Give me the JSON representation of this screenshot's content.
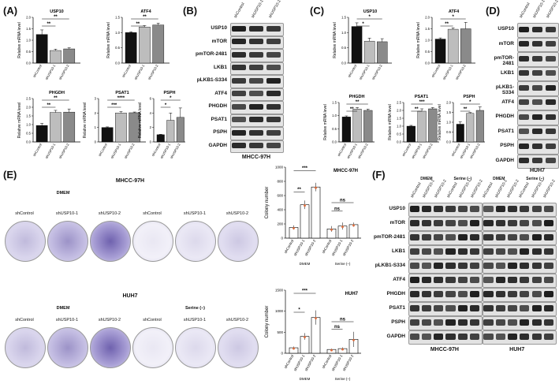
{
  "panel_letters": {
    "A": "(A)",
    "B": "(B)",
    "C": "(C)",
    "D": "(D)",
    "E": "(E)",
    "F": "(F)"
  },
  "qpcr_categories": [
    "shControl",
    "shUSP10-1",
    "shUSP10-2"
  ],
  "qpcr_ylabel": "Relative mRNA level",
  "chart_data": [
    {
      "type": "bar",
      "panel": "A",
      "title": "USP10",
      "categories": [
        "shControl",
        "shUSP10-1",
        "shUSP10-2"
      ],
      "values": [
        1.25,
        0.55,
        0.62
      ],
      "errors": [
        0.2,
        0.06,
        0.05
      ],
      "ylim": [
        0,
        2.0
      ],
      "yticks": [
        "0.0",
        "0.5",
        "1.0",
        "1.5",
        "2.0"
      ],
      "sig": [
        "**",
        "**"
      ]
    },
    {
      "type": "bar",
      "panel": "A",
      "title": "ATF4",
      "categories": [
        "shControl",
        "shUSP10-1",
        "shUSP10-2"
      ],
      "values": [
        1.0,
        1.18,
        1.25
      ],
      "errors": [
        0.03,
        0.05,
        0.06
      ],
      "ylim": [
        0,
        1.5
      ],
      "yticks": [
        "0.0",
        "0.5",
        "1.0",
        "1.5"
      ],
      "sig": [
        "**",
        "**"
      ]
    },
    {
      "type": "bar",
      "panel": "A",
      "title": "PHGDH",
      "categories": [
        "shControl",
        "shUSP10-1",
        "shUSP10-2"
      ],
      "values": [
        0.95,
        1.7,
        1.72
      ],
      "errors": [
        0.12,
        0.12,
        0.18
      ],
      "ylim": [
        0,
        2.5
      ],
      "yticks": [
        "0.0",
        "0.5",
        "1.0",
        "1.5",
        "2.0",
        "2.5"
      ],
      "sig": [
        "**",
        "**"
      ]
    },
    {
      "type": "bar",
      "panel": "A",
      "title": "PSAT1",
      "categories": [
        "shControl",
        "shUSP10-1",
        "shUSP10-2"
      ],
      "values": [
        1.0,
        2.0,
        2.02
      ],
      "errors": [
        0.04,
        0.1,
        0.05
      ],
      "ylim": [
        0,
        3
      ],
      "yticks": [
        "0",
        "1",
        "2",
        "3"
      ],
      "sig": [
        "***",
        "****"
      ]
    },
    {
      "type": "bar",
      "panel": "A",
      "title": "PSPH",
      "categories": [
        "shControl",
        "shUSP10-1",
        "shUSP10-2"
      ],
      "values": [
        1.0,
        3.0,
        3.4
      ],
      "errors": [
        0.05,
        1.0,
        1.3
      ],
      "ylim": [
        0,
        6
      ],
      "yticks": [
        "0",
        "2",
        "4",
        "6"
      ],
      "sig": [
        "*",
        "*"
      ]
    },
    {
      "type": "bar",
      "panel": "C",
      "title": "USP10",
      "categories": [
        "shControl",
        "shUSP10-1",
        "shUSP10-2"
      ],
      "values": [
        1.2,
        0.72,
        0.7
      ],
      "errors": [
        0.12,
        0.1,
        0.1
      ],
      "ylim": [
        0,
        1.5
      ],
      "yticks": [
        "0.0",
        "0.5",
        "1.0",
        "1.5"
      ],
      "sig": [
        "*",
        "*"
      ]
    },
    {
      "type": "bar",
      "panel": "C",
      "title": "ATF4",
      "categories": [
        "shControl",
        "shUSP10-1",
        "shUSP10-2"
      ],
      "values": [
        1.05,
        1.48,
        1.5
      ],
      "errors": [
        0.05,
        0.06,
        0.28
      ],
      "ylim": [
        0,
        2.0
      ],
      "yticks": [
        "0.0",
        "0.5",
        "1.0",
        "1.5",
        "2.0"
      ],
      "sig": [
        "**",
        "*"
      ]
    },
    {
      "type": "bar",
      "panel": "C",
      "title": "PHGDH",
      "categories": [
        "shControl",
        "shUSP10-1",
        "shUSP10-2"
      ],
      "values": [
        0.95,
        1.25,
        1.2
      ],
      "errors": [
        0.04,
        0.06,
        0.05
      ],
      "ylim": [
        0,
        1.5
      ],
      "yticks": [
        "0.0",
        "0.5",
        "1.0",
        "1.5"
      ],
      "sig": [
        "**",
        "**"
      ]
    },
    {
      "type": "bar",
      "panel": "C",
      "title": "PSAT1",
      "categories": [
        "shControl",
        "shUSP10-1",
        "shUSP10-2"
      ],
      "values": [
        1.0,
        1.95,
        2.1
      ],
      "errors": [
        0.05,
        0.15,
        0.08
      ],
      "ylim": [
        0,
        2.5
      ],
      "yticks": [
        "0.0",
        "0.5",
        "1.0",
        "1.5",
        "2.0",
        "2.5"
      ],
      "sig": [
        "**",
        "***"
      ]
    },
    {
      "type": "bar",
      "panel": "C",
      "title": "PSPH",
      "categories": [
        "shControl",
        "shUSP10-1",
        "shUSP10-2"
      ],
      "values": [
        0.9,
        1.45,
        1.6
      ],
      "errors": [
        0.12,
        0.04,
        0.18
      ],
      "ylim": [
        0,
        2.0
      ],
      "yticks": [
        "0.0",
        "0.5",
        "1.0",
        "1.5",
        "2.0"
      ],
      "sig": [
        "**",
        "*"
      ]
    },
    {
      "type": "bar",
      "panel": "E",
      "title": "MHCC-97H",
      "ylabel": "Colony number",
      "categories": [
        "shControl",
        "shUSP10-1",
        "shUSP10-2",
        "shControl",
        "shUSP10-1",
        "shUSP10-2"
      ],
      "groups": [
        "DMEM",
        "Serine (–)"
      ],
      "values": [
        150,
        470,
        720,
        130,
        170,
        190
      ],
      "errors": [
        30,
        60,
        60,
        40,
        50,
        30
      ],
      "ylim": [
        0,
        1000
      ],
      "yticks": [
        "0",
        "200",
        "400",
        "600",
        "800",
        "1000"
      ],
      "sig": [
        "**",
        "***",
        "ns",
        "ns"
      ]
    },
    {
      "type": "bar",
      "panel": "E",
      "title": "HUH7",
      "ylabel": "Colony number",
      "categories": [
        "shControl",
        "shUSP10-1",
        "shUSP10-2",
        "shControl",
        "shUSP10-1",
        "shUSP10-2"
      ],
      "groups": [
        "DMEM",
        "Serine (–)"
      ],
      "values": [
        130,
        400,
        850,
        90,
        110,
        330
      ],
      "errors": [
        30,
        80,
        170,
        20,
        30,
        180
      ],
      "ylim": [
        0,
        1500
      ],
      "yticks": [
        "0",
        "500",
        "1000",
        "1500"
      ],
      "sig": [
        "*",
        "***",
        "ns",
        "ns"
      ]
    }
  ],
  "blot_B": {
    "lanes": [
      "shControl",
      "shUSP10-1",
      "shUSP10-2"
    ],
    "labels": [
      "USP10",
      "mTOR",
      "pmTOR-2481",
      "LKB1",
      "pLKB1-S334",
      "ATF4",
      "PHGDH",
      "PSAT1",
      "PSPH",
      "GAPDH"
    ],
    "caption": "MHCC-97H"
  },
  "blot_D": {
    "lanes": [
      "shControl",
      "shUSP10-1",
      "shUSP10-2"
    ],
    "labels": [
      "USP10",
      "mTOR",
      "pmTOR-2481",
      "LKB1",
      "pLKB1-S334",
      "ATF4",
      "PHGDH",
      "PSAT1",
      "PSPH",
      "GAPDH"
    ],
    "caption": "HUH7"
  },
  "blot_F": {
    "lanes": [
      "shControl",
      "shUSP10-1",
      "shUSP10-2",
      "shControl",
      "shUSP10-1",
      "shUSP10-2",
      "shControl",
      "shUSP10-1",
      "shUSP10-2",
      "shControl",
      "shUSP10-1",
      "shUSP10-2"
    ],
    "groups": [
      "DMEM",
      "Serine (–)",
      "DMEM",
      "Serine (–)"
    ],
    "labels": [
      "USP10",
      "mTOR",
      "pmTOR-2481",
      "LKB1",
      "pLKB1-S334",
      "ATF4",
      "PHGDH",
      "PSAT1",
      "PSPH",
      "GAPDH"
    ],
    "captions": [
      "MHCC-97H",
      "HUH7"
    ]
  },
  "plates_E": {
    "row1_title": "MHCC-97H",
    "row2_title": "HUH7",
    "dmem": "DMEM",
    "serine": "Serine (–)",
    "plate_labels": [
      "shControl",
      "shUSP10-1",
      "shUSP10-2",
      "shControl",
      "shUSP10-1",
      "shUSP10-2"
    ]
  },
  "colors": {
    "bar_ctrl": "#111111",
    "bar_kd1": "#bdbdbd",
    "bar_kd2": "#8a8a8a",
    "plate": "#4b3a9a",
    "dot": "#e06b3a"
  }
}
